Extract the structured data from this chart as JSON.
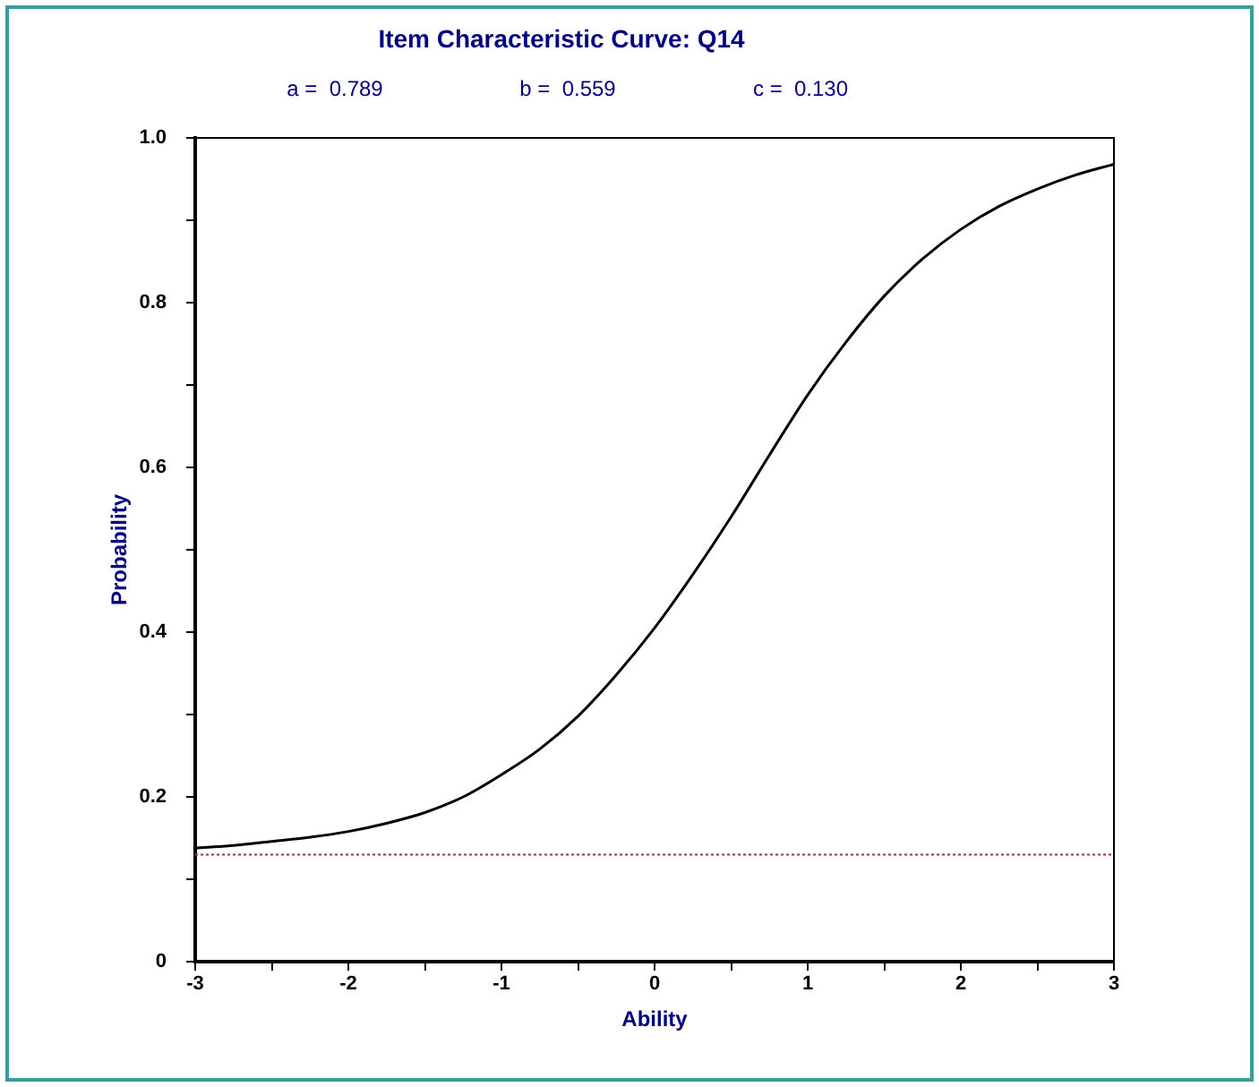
{
  "chart_data": {
    "type": "line",
    "title": "Item Characteristic Curve: Q14",
    "annotations": [
      "a =  0.789",
      "b =  0.559",
      "c =  0.130"
    ],
    "xlabel": "Ability",
    "ylabel": "Probability",
    "x": [
      -3,
      -2.75,
      -2.5,
      -2.25,
      -2,
      -1.75,
      -1.5,
      -1.25,
      -1,
      -0.75,
      -0.5,
      -0.25,
      0,
      0.25,
      0.5,
      0.75,
      1,
      1.25,
      1.5,
      1.75,
      2,
      2.25,
      2.5,
      2.75,
      3
    ],
    "series": [
      {
        "color": "#000000",
        "values": [
          0.138,
          0.141,
          0.146,
          0.151,
          0.158,
          0.168,
          0.181,
          0.2,
          0.227,
          0.258,
          0.298,
          0.348,
          0.405,
          0.47,
          0.54,
          0.615,
          0.688,
          0.752,
          0.808,
          0.853,
          0.889,
          0.917,
          0.938,
          0.955,
          0.968
        ]
      }
    ],
    "xlim": [
      -3,
      3
    ],
    "xticks": [
      -3,
      {
        "value": -2.5,
        "label": null
      },
      -2,
      {
        "value": -1.5,
        "label": null
      },
      -1,
      {
        "value": -0.5,
        "label": null
      },
      0,
      {
        "value": 0.5,
        "label": null
      },
      1,
      {
        "value": 1.5,
        "label": null
      },
      2,
      {
        "value": 2.5,
        "label": null
      },
      3
    ],
    "ylim": [
      0,
      1
    ],
    "yticks": [
      0,
      {
        "value": 0.1,
        "label": null
      },
      0.2,
      {
        "value": 0.3,
        "label": null
      },
      0.4,
      {
        "value": 0.5,
        "label": null
      },
      0.6,
      {
        "value": 0.7,
        "label": null
      },
      0.8,
      {
        "value": 0.9,
        "label": null
      },
      {
        "value": 1,
        "label": "1.0"
      }
    ],
    "ref_lines": [
      {
        "axis": "y",
        "value": 0.13,
        "color": "#a83232",
        "line_style": "dotted"
      }
    ]
  }
}
